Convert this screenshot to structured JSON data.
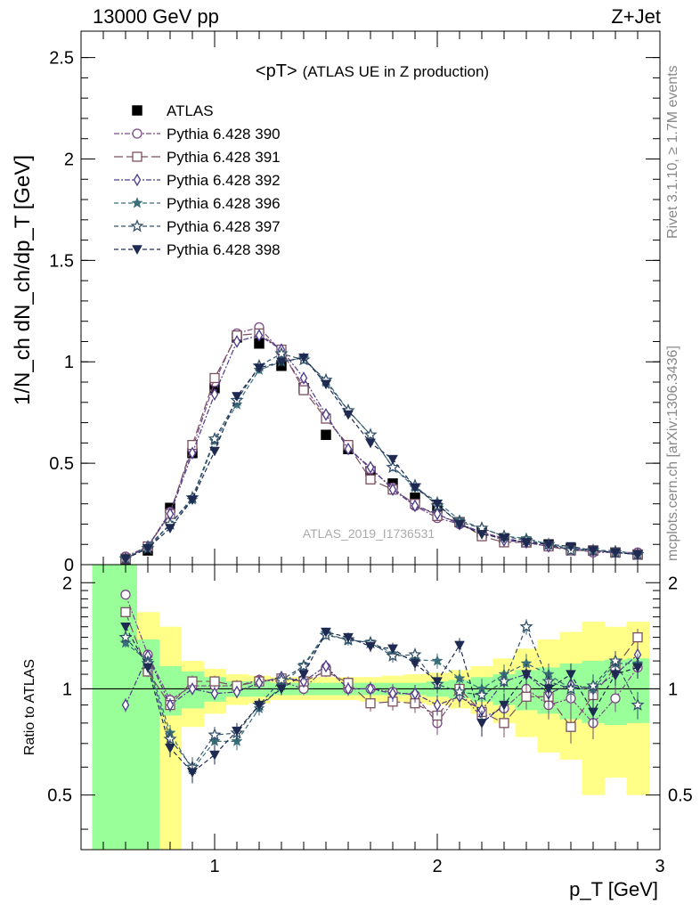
{
  "header": {
    "left_label": "13000 GeV pp",
    "right_label": "Z+Jet"
  },
  "side_labels": {
    "rivet": "Rivet 3.1.10, ≥ 1.7M events",
    "mcplots": "mcplots.cern.ch [arXiv:1306.3436]"
  },
  "chart_data": [
    {
      "type": "scatter",
      "panel": "main",
      "title_main": "<pT>",
      "title_sub": "(ATLAS UE in Z production)",
      "ylabel": "1/N_ch dN_ch/dp_T [GeV]",
      "watermark": "ATLAS_2019_I1736531",
      "xlim": [
        0.4,
        3.0
      ],
      "ylim": [
        0,
        2.63
      ],
      "x_ticks": [
        1,
        2,
        3
      ],
      "y_ticks": [
        0,
        0.5,
        1,
        1.5,
        2,
        2.5
      ],
      "y_tick_labels": [
        "0",
        "0.5",
        "1",
        "1.5",
        "2",
        "2.5"
      ],
      "legend_position": "top-left",
      "x": [
        0.5,
        0.6,
        0.7,
        0.8,
        0.9,
        1.0,
        1.1,
        1.2,
        1.3,
        1.4,
        1.5,
        1.6,
        1.7,
        1.8,
        1.9,
        2.0,
        2.1,
        2.2,
        2.3,
        2.4,
        2.5,
        2.6,
        2.7,
        2.8,
        2.9
      ],
      "series": [
        {
          "name": "ATLAS",
          "color": "#000000",
          "marker": "filled-square",
          "dash": "none",
          "values": [
            0.0,
            0.02,
            0.07,
            0.28,
            0.55,
            0.87,
            1.12,
            1.09,
            0.98,
            0.87,
            0.64,
            0.57,
            0.46,
            0.4,
            0.33,
            0.28,
            0.21,
            0.16,
            0.13,
            0.11,
            0.1,
            0.08,
            0.07,
            0.06,
            0.05
          ]
        },
        {
          "name": "Pythia 6.428 390",
          "color": "#7a4a86",
          "marker": "open-circle",
          "dash": "6,2,2,2",
          "values": [
            0.0,
            0.04,
            0.09,
            0.26,
            0.57,
            0.9,
            1.14,
            1.17,
            1.05,
            0.88,
            0.73,
            0.58,
            0.47,
            0.38,
            0.29,
            0.23,
            0.2,
            0.16,
            0.13,
            0.11,
            0.09,
            0.08,
            0.06,
            0.06,
            0.06
          ]
        },
        {
          "name": "Pythia 6.428 391",
          "color": "#7b5060",
          "marker": "open-square",
          "dash": "10,4",
          "values": [
            0.0,
            0.03,
            0.09,
            0.25,
            0.59,
            0.92,
            1.13,
            1.14,
            1.06,
            0.86,
            0.72,
            0.59,
            0.42,
            0.37,
            0.3,
            0.24,
            0.21,
            0.14,
            0.11,
            0.11,
            0.09,
            0.07,
            0.07,
            0.06,
            0.05
          ]
        },
        {
          "name": "Pythia 6.428 392",
          "color": "#4b3a8a",
          "marker": "open-diamond",
          "dash": "6,2,2,2",
          "values": [
            0.0,
            0.03,
            0.09,
            0.25,
            0.55,
            0.84,
            1.1,
            1.13,
            1.06,
            0.92,
            0.74,
            0.57,
            0.48,
            0.37,
            0.29,
            0.25,
            0.2,
            0.16,
            0.12,
            0.11,
            0.09,
            0.08,
            0.07,
            0.06,
            0.05
          ]
        },
        {
          "name": "Pythia 6.428 396",
          "color": "#3a6e78",
          "marker": "filled-star",
          "dash": "5,3",
          "values": [
            0.0,
            0.03,
            0.09,
            0.2,
            0.32,
            0.61,
            0.79,
            0.96,
            1.0,
            1.02,
            0.9,
            0.76,
            0.64,
            0.48,
            0.38,
            0.31,
            0.22,
            0.18,
            0.14,
            0.13,
            0.1,
            0.08,
            0.07,
            0.07,
            0.05
          ]
        },
        {
          "name": "Pythia 6.428 397",
          "color": "#34526a",
          "marker": "open-star",
          "dash": "5,3",
          "values": [
            0.0,
            0.03,
            0.08,
            0.2,
            0.33,
            0.62,
            0.81,
            0.98,
            1.04,
            1.01,
            0.91,
            0.76,
            0.64,
            0.48,
            0.39,
            0.29,
            0.21,
            0.18,
            0.14,
            0.12,
            0.1,
            0.07,
            0.07,
            0.06,
            0.05
          ]
        },
        {
          "name": "Pythia 6.428 398",
          "color": "#1e2a52",
          "marker": "filled-triangle-down",
          "dash": "5,3",
          "values": [
            0.0,
            0.03,
            0.08,
            0.18,
            0.32,
            0.56,
            0.83,
            0.97,
            1.0,
            1.02,
            0.89,
            0.74,
            0.6,
            0.52,
            0.38,
            0.3,
            0.2,
            0.15,
            0.13,
            0.11,
            0.1,
            0.09,
            0.07,
            0.06,
            0.05
          ]
        }
      ]
    },
    {
      "type": "scatter",
      "panel": "ratio",
      "ylabel": "Ratio to ATLAS",
      "xlabel": "p_T [GeV]",
      "xlim": [
        0.4,
        3.0
      ],
      "ylim": [
        0.35,
        2.25
      ],
      "x_ticks": [
        1,
        2,
        3
      ],
      "x_tick_labels": [
        "1",
        "2",
        "3"
      ],
      "y_ticks": [
        0.5,
        1,
        2
      ],
      "y_tick_labels": [
        "0.5",
        "1",
        "2"
      ],
      "bands": {
        "x_edges": [
          0.45,
          0.55,
          0.65,
          0.75,
          0.85,
          0.95,
          1.05,
          1.15,
          1.25,
          1.35,
          1.45,
          1.55,
          1.65,
          1.75,
          1.85,
          1.95,
          2.05,
          2.15,
          2.25,
          2.35,
          2.45,
          2.55,
          2.65,
          2.75,
          2.85,
          2.95
        ],
        "inner_color": "#99ff99",
        "outer_color": "#ffff88",
        "inner_low": [
          0.35,
          0.35,
          0.35,
          0.84,
          0.88,
          0.92,
          0.95,
          0.95,
          0.96,
          0.96,
          0.96,
          0.96,
          0.96,
          0.96,
          0.96,
          0.95,
          0.94,
          0.92,
          0.9,
          0.87,
          0.85,
          0.82,
          0.8,
          0.79,
          0.8
        ],
        "inner_high": [
          2.25,
          2.25,
          1.38,
          1.16,
          1.12,
          1.08,
          1.05,
          1.05,
          1.04,
          1.04,
          1.04,
          1.04,
          1.04,
          1.04,
          1.04,
          1.05,
          1.06,
          1.08,
          1.1,
          1.13,
          1.15,
          1.18,
          1.2,
          1.21,
          1.22
        ],
        "outer_low": [
          0.35,
          0.35,
          0.35,
          0.35,
          0.78,
          0.85,
          0.9,
          0.91,
          0.93,
          0.93,
          0.93,
          0.93,
          0.92,
          0.92,
          0.91,
          0.9,
          0.88,
          0.85,
          0.8,
          0.73,
          0.66,
          0.63,
          0.5,
          0.56,
          0.5
        ],
        "outer_high": [
          2.25,
          2.25,
          1.65,
          1.5,
          1.2,
          1.14,
          1.1,
          1.09,
          1.08,
          1.08,
          1.08,
          1.08,
          1.08,
          1.09,
          1.1,
          1.11,
          1.13,
          1.16,
          1.22,
          1.3,
          1.38,
          1.45,
          1.55,
          1.5,
          1.55
        ]
      },
      "x": [
        0.6,
        0.7,
        0.8,
        0.9,
        1.0,
        1.1,
        1.2,
        1.3,
        1.4,
        1.5,
        1.6,
        1.7,
        1.8,
        1.9,
        2.0,
        2.1,
        2.2,
        2.3,
        2.4,
        2.5,
        2.6,
        2.7,
        2.8,
        2.9
      ],
      "series": [
        {
          "name": "Pythia 6.428 390",
          "color": "#7a4a86",
          "marker": "open-circle",
          "dash": "6,2,2,2",
          "values": [
            1.85,
            1.25,
            0.93,
            1.02,
            1.02,
            1.02,
            1.06,
            1.05,
            1.0,
            1.15,
            1.0,
            1.0,
            0.98,
            0.96,
            0.8,
            0.98,
            0.83,
            0.88,
            1.0,
            0.9,
            0.94,
            0.8,
            0.94,
            1.15
          ]
        },
        {
          "name": "Pythia 6.428 391",
          "color": "#7b5060",
          "marker": "open-square",
          "dash": "10,4",
          "values": [
            1.65,
            1.12,
            0.9,
            1.05,
            1.05,
            1.02,
            1.05,
            1.07,
            1.05,
            1.12,
            1.04,
            0.91,
            0.92,
            0.91,
            0.84,
            1.0,
            0.86,
            0.8,
            0.95,
            0.95,
            0.78,
            0.96,
            1.15,
            1.4
          ]
        },
        {
          "name": "Pythia 6.428 392",
          "color": "#4b3a8a",
          "marker": "open-diamond",
          "dash": "6,2,2,2",
          "values": [
            0.9,
            1.24,
            0.9,
            1.0,
            0.97,
            0.98,
            1.04,
            1.08,
            1.05,
            1.16,
            1.0,
            1.0,
            0.97,
            0.97,
            0.9,
            0.95,
            0.87,
            1.05,
            1.1,
            0.97,
            1.03,
            1.0,
            1.1,
            1.25
          ]
        },
        {
          "name": "Pythia 6.428 396",
          "color": "#3a6e78",
          "marker": "filled-star",
          "dash": "5,3",
          "values": [
            1.35,
            1.2,
            0.75,
            0.59,
            0.71,
            0.71,
            0.88,
            1.02,
            1.17,
            1.44,
            1.37,
            1.36,
            1.26,
            1.21,
            1.2,
            1.07,
            1.0,
            1.1,
            1.18,
            1.1,
            1.0,
            1.0,
            1.18,
            1.18
          ]
        },
        {
          "name": "Pythia 6.428 397",
          "color": "#34526a",
          "marker": "open-star",
          "dash": "5,3",
          "values": [
            1.4,
            1.18,
            0.72,
            0.6,
            0.74,
            0.75,
            0.9,
            1.06,
            1.16,
            1.42,
            1.38,
            1.35,
            1.24,
            1.25,
            1.03,
            0.98,
            0.96,
            1.05,
            1.5,
            1.05,
            1.0,
            1.02,
            1.2,
            0.9
          ]
        },
        {
          "name": "Pythia 6.428 398",
          "color": "#1e2a52",
          "marker": "filled-triangle-down",
          "dash": "5,3",
          "values": [
            1.5,
            1.15,
            0.68,
            0.58,
            0.65,
            0.76,
            0.9,
            1.0,
            1.1,
            1.45,
            1.4,
            1.32,
            1.3,
            1.18,
            1.05,
            1.33,
            0.8,
            0.9,
            1.1,
            1.0,
            1.1,
            0.86,
            1.1,
            1.15
          ]
        }
      ]
    }
  ]
}
